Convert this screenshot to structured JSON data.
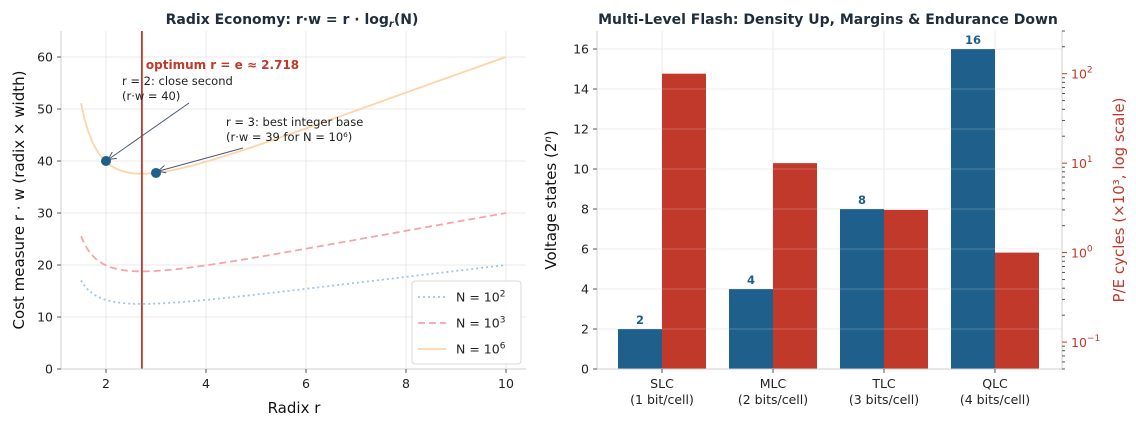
{
  "colors": {
    "navy": "#1f5f8b",
    "red": "#c0392b",
    "curve_n2": "#9fc5e8",
    "curve_n3": "#f4a6a6",
    "curve_n6": "#fdd5a8",
    "annot_arrow": "#4a5a70"
  },
  "chart_data": [
    {
      "type": "line",
      "title_main": "Radix Economy: r·w = r · log",
      "title_sub": "r",
      "title_tail": "(N)",
      "xlabel": "Radix r",
      "ylabel": "Cost measure  r · w  (radix × width)",
      "xlim": [
        1.1,
        10.4
      ],
      "ylim": [
        0,
        65
      ],
      "xticks": [
        2,
        4,
        6,
        8,
        10
      ],
      "yticks": [
        0,
        10,
        20,
        30,
        40,
        50,
        60
      ],
      "grid": true,
      "legend_position": "bottom-right",
      "series": [
        {
          "name_base": "N = 10",
          "name_exp": "2",
          "N": 100,
          "r_range": [
            1.5,
            10
          ],
          "style": "dotted"
        },
        {
          "name_base": "N = 10",
          "name_exp": "3",
          "N": 1000,
          "r_range": [
            1.5,
            10
          ],
          "style": "dashed"
        },
        {
          "name_base": "N = 10",
          "name_exp": "6",
          "N": 1000000,
          "r_range": [
            1.5,
            10
          ],
          "style": "solid"
        }
      ],
      "vline": {
        "x": 2.718,
        "label": "optimum r = e ≈ 2.718"
      },
      "points": [
        {
          "x": 2,
          "y": 40,
          "label_line1": "r = 2: close second",
          "label_line2": "(r·w = 40)"
        },
        {
          "x": 3,
          "y": 37.7,
          "label_line1": "r = 3: best integer base",
          "label_line2": "(r·w = 39 for N = 10⁶)"
        }
      ]
    },
    {
      "type": "bar",
      "title": "Multi-Level Flash: Density Up, Margins & Endurance Down",
      "categories": [
        "SLC",
        "MLC",
        "TLC",
        "QLC"
      ],
      "category_sublabels": [
        "(1 bit/cell)",
        "(2 bits/cell)",
        "(3 bits/cell)",
        "(4 bits/cell)"
      ],
      "series": [
        {
          "name": "Voltage states",
          "axis": "left",
          "values": [
            2,
            4,
            8,
            16
          ],
          "labels": [
            "2",
            "4",
            "8",
            "16"
          ]
        },
        {
          "name": "P/E cycles",
          "axis": "right",
          "values": [
            100,
            10,
            3,
            1
          ]
        }
      ],
      "left_axis": {
        "label_main": "Voltage states (2",
        "label_sup": "n",
        "label_tail": ")",
        "ylim": [
          0,
          16.9
        ],
        "ticks": [
          0,
          2,
          4,
          6,
          8,
          10,
          12,
          14,
          16
        ]
      },
      "right_axis": {
        "label": "P/E cycles (×10³, log scale)",
        "scale": "log",
        "ylim": [
          0.05,
          300
        ],
        "ticks": [
          0.1,
          1,
          10,
          100
        ],
        "tick_labels": [
          {
            "base": "10",
            "exp": "−1"
          },
          {
            "base": "10",
            "exp": "0"
          },
          {
            "base": "10",
            "exp": "1"
          },
          {
            "base": "10",
            "exp": "2"
          }
        ]
      },
      "grid": true
    }
  ]
}
